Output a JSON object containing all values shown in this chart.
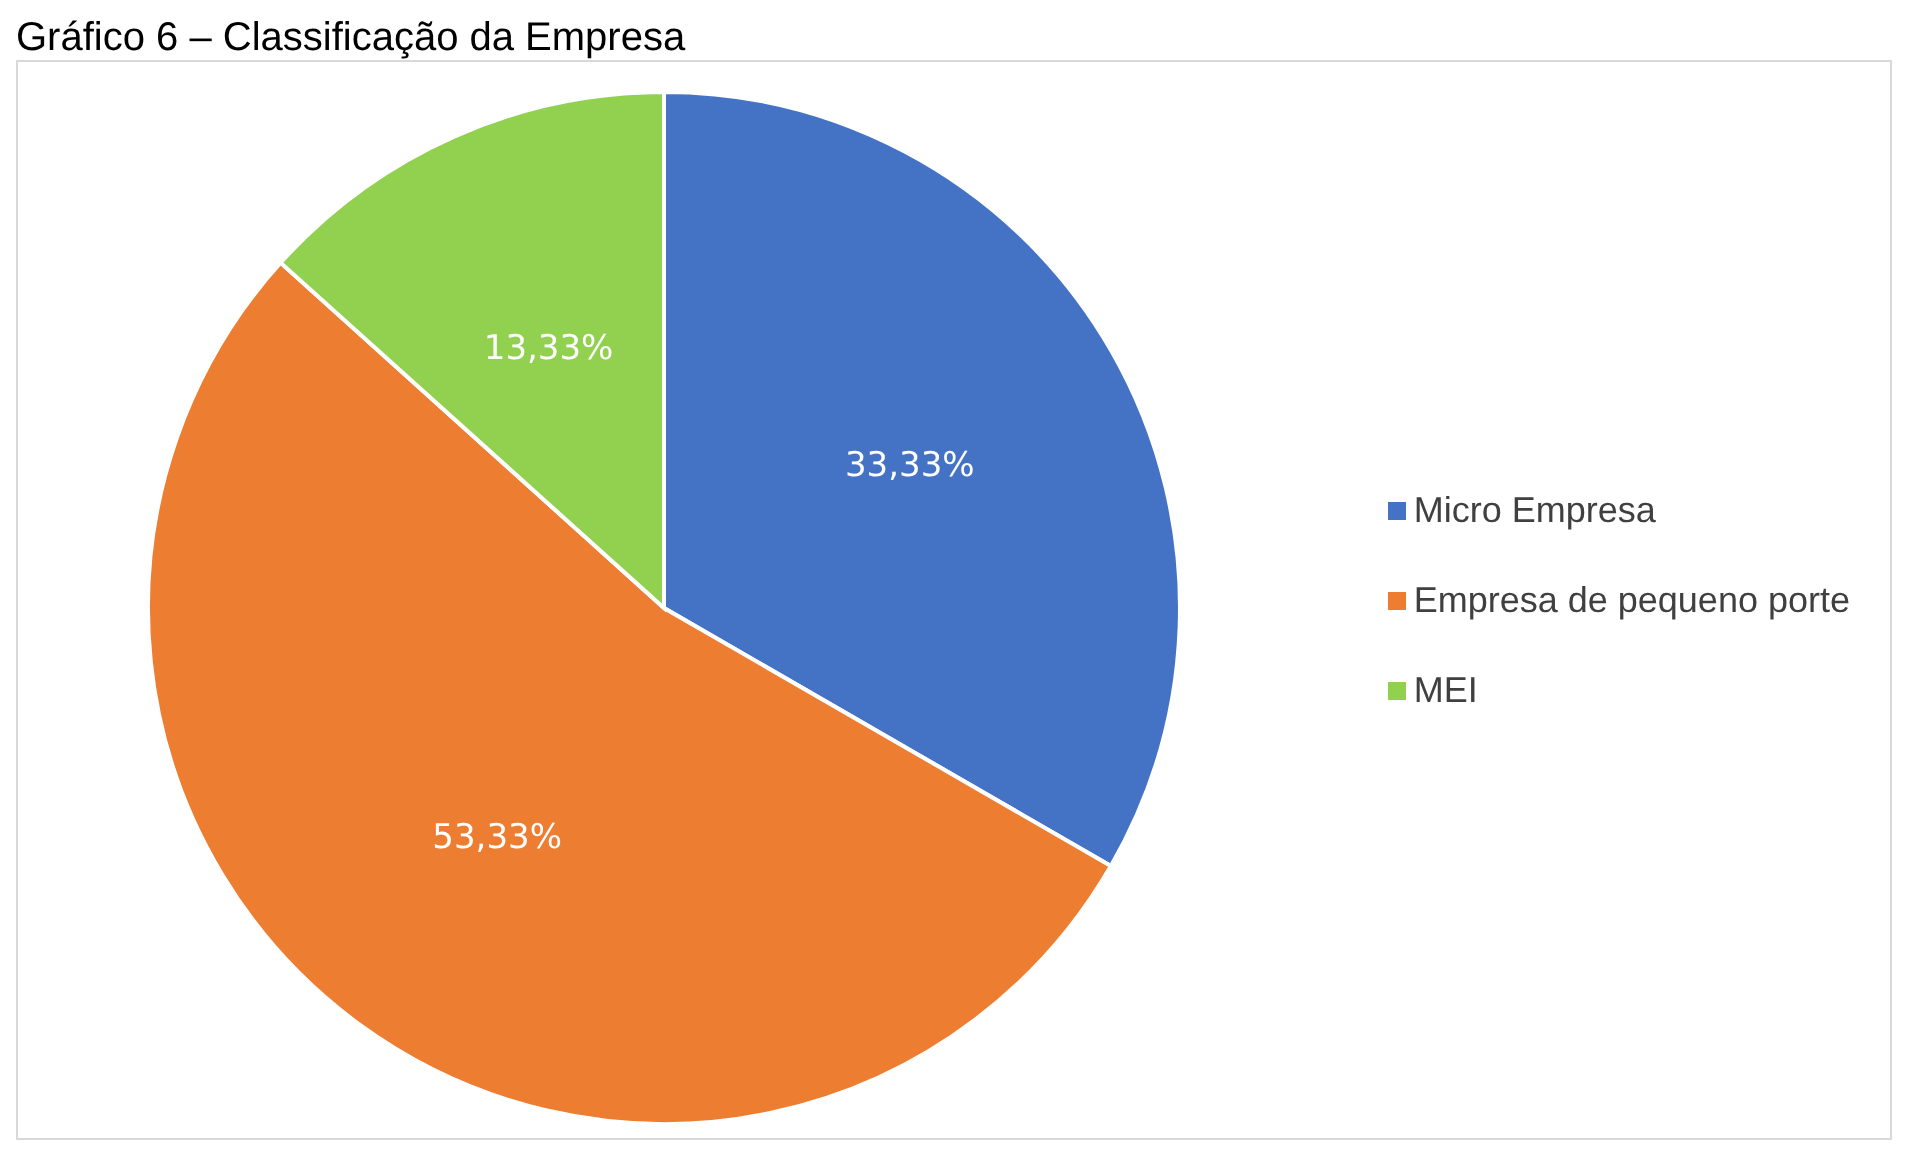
{
  "chart_data": {
    "type": "pie",
    "title": "Gráfico 6 – Classificação da Empresa",
    "categories": [
      "Micro Empresa",
      "Empresa de pequeno porte",
      "MEI"
    ],
    "values": [
      33.33,
      53.33,
      13.33
    ],
    "colors": [
      "#4472c4",
      "#ed7d31",
      "#92d050"
    ],
    "value_labels": [
      "33,33%",
      "53,33%",
      "13,33%"
    ],
    "legend": "right"
  }
}
